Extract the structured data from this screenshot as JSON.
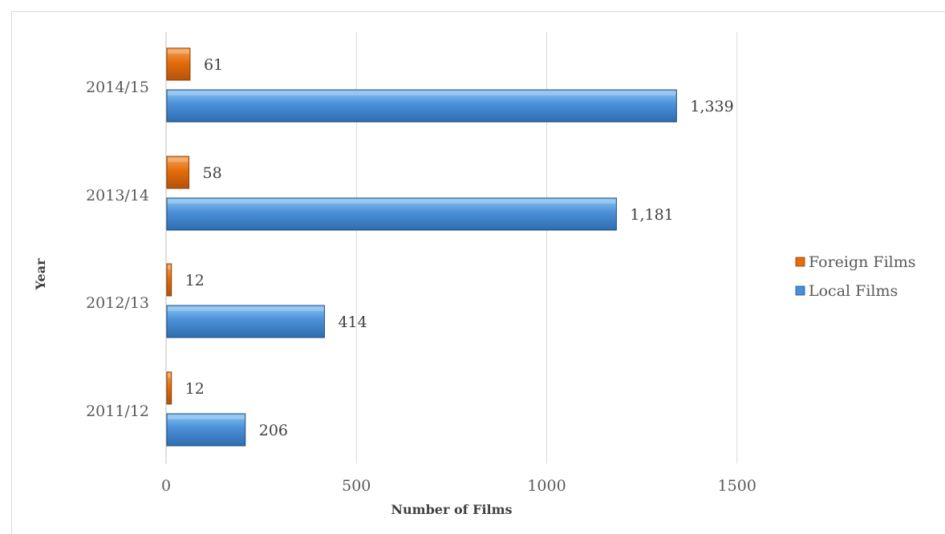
{
  "chart_data": {
    "type": "bar",
    "orientation": "horizontal",
    "categories": [
      "2011/12",
      "2012/13",
      "2013/14",
      "2014/15"
    ],
    "series": [
      {
        "name": "Foreign Films",
        "values": [
          12,
          12,
          58,
          61
        ],
        "color": "#E46C0A"
      },
      {
        "name": "Local Films",
        "values": [
          206,
          414,
          1181,
          1339
        ],
        "color": "#4A90D9"
      }
    ],
    "data_labels": {
      "Foreign Films": [
        "12",
        "12",
        "58",
        "61"
      ],
      "Local Films": [
        "206",
        "414",
        "1,181",
        "1,339"
      ]
    },
    "x_ticks": [
      "0",
      "500",
      "1000",
      "1500"
    ],
    "x_tick_values": [
      0,
      500,
      1000,
      1500
    ],
    "xlim": [
      0,
      2000
    ],
    "xlabel": "Number of Films",
    "ylabel": "Year",
    "grid": "vertical",
    "legend": "right",
    "legend_entries": [
      "Foreign Films",
      "Local Films"
    ]
  }
}
